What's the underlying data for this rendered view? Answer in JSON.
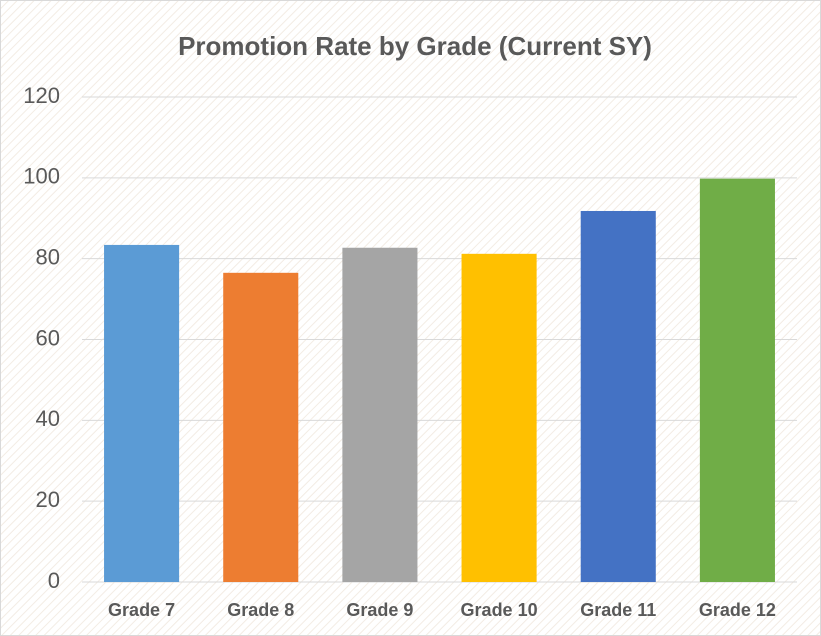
{
  "chart_data": {
    "type": "bar",
    "title": "Promotion Rate by Grade (Current SY)",
    "categories": [
      "Grade 7",
      "Grade 8",
      "Grade 9",
      "Grade 10",
      "Grade 11",
      "Grade 12"
    ],
    "values": [
      83.4,
      76.5,
      82.7,
      81.2,
      91.8,
      99.8
    ],
    "colors": [
      "#5b9bd5",
      "#ed7d31",
      "#a5a5a5",
      "#ffc000",
      "#4472c4",
      "#70ad47"
    ],
    "ylim": [
      0,
      120
    ],
    "yticks": [
      0,
      20,
      40,
      60,
      80,
      100,
      120
    ],
    "grid": true
  }
}
